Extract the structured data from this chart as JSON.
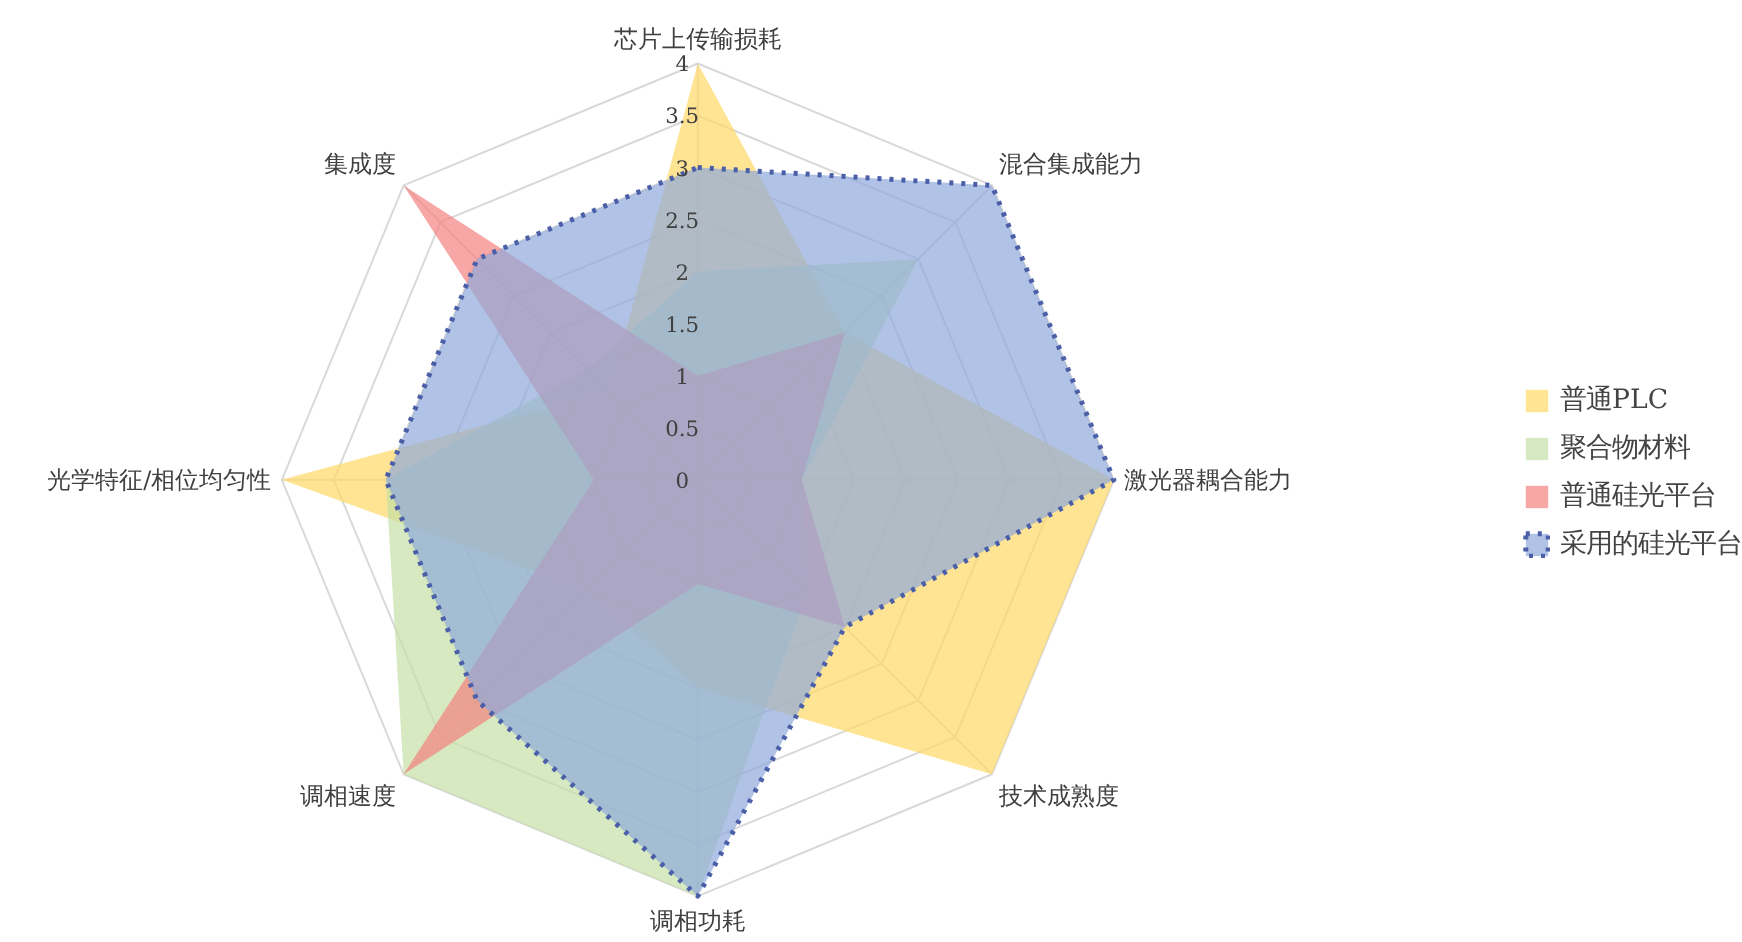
{
  "chart_data": {
    "type": "radar",
    "categories": [
      "芯片上传输损耗",
      "混合集成能力",
      "激光器耦合能力",
      "技术成熟度",
      "调相功耗",
      "调相速度",
      "光学特征/相位均匀性",
      "集成度"
    ],
    "ylim": [
      0,
      4
    ],
    "yticks": [
      0,
      0.5,
      1,
      1.5,
      2,
      2.5,
      3,
      3.5,
      4
    ],
    "grid": true,
    "legend": "right",
    "series": [
      {
        "name": "普通PLC",
        "color": "#ffd966",
        "values": [
          4,
          2,
          4,
          4,
          2,
          1.5,
          4,
          1.2
        ]
      },
      {
        "name": "聚合物材料",
        "color": "#c5e0a5",
        "values": [
          2,
          3,
          1,
          1.5,
          4,
          4,
          3,
          1.5
        ]
      },
      {
        "name": "普通硅光平台",
        "color": "#f4827f",
        "values": [
          1,
          2,
          1,
          2,
          1,
          4,
          1,
          4
        ]
      },
      {
        "name": "采用的硅光平台",
        "color": "#8faadc",
        "line_style": "dotted",
        "values": [
          3,
          4,
          4,
          2,
          4,
          3,
          3,
          3
        ]
      }
    ]
  }
}
